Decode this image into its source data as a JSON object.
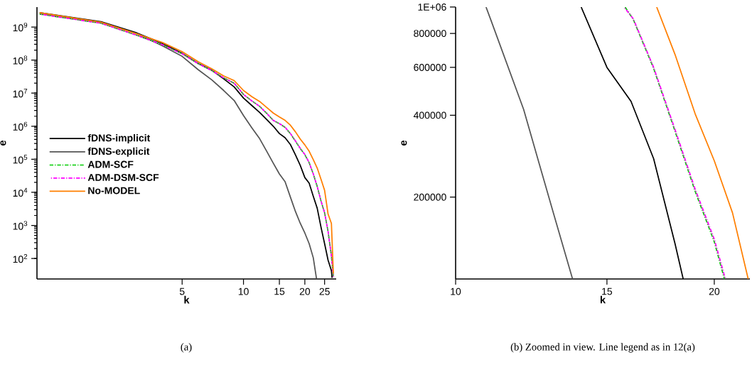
{
  "chart_data": [
    {
      "type": "line",
      "xlabel": "k",
      "ylabel": "e",
      "log": "xy",
      "xlim": [
        0.97,
        28.5
      ],
      "ylim": [
        24,
        4000000000
      ],
      "xticks": [
        5,
        10,
        15,
        20,
        25
      ],
      "yticks": [
        {
          "value": 100,
          "label": "10$^{2}$"
        },
        {
          "value": 1000,
          "label": "10$^{3}$"
        },
        {
          "value": 10000,
          "label": "10$^{4}$"
        },
        {
          "value": 100000,
          "label": "10$^{5}$"
        },
        {
          "value": 1000000,
          "label": "10$^{6}$"
        },
        {
          "value": 10000000,
          "label": "10$^{7}$"
        },
        {
          "value": 100000000,
          "label": "10$^{8}$"
        },
        {
          "value": 1000000000,
          "label": "10$^{9}$"
        }
      ],
      "legend": "left",
      "series": [
        {
          "name": "fDNS-implicit",
          "color": "#000000",
          "line_style": "solid",
          "x": [
            1,
            2,
            3,
            4,
            5,
            6,
            7,
            8,
            9,
            10,
            11,
            12,
            13,
            14,
            15,
            16,
            17,
            18,
            19,
            20,
            21,
            22,
            23,
            24,
            25,
            26,
            27,
            27.2
          ],
          "values": [
            2700000000,
            1450000000,
            660000000,
            320000000,
            160000000,
            79000000,
            49000000,
            27000000,
            15500000,
            7100000,
            4200000,
            2600000,
            1600000,
            1000000,
            600000,
            450000,
            277000,
            135000,
            65000,
            28000,
            19000,
            7600,
            3300,
            890,
            280,
            89,
            43,
            26
          ]
        },
        {
          "name": "fDNS-explicit",
          "color": "#555555",
          "line_style": "solid",
          "x": [
            1,
            2,
            3,
            4,
            5,
            6,
            7,
            8,
            9,
            10,
            11,
            12,
            13,
            14,
            15,
            16,
            17,
            18,
            19,
            20,
            21,
            22,
            22.8
          ],
          "values": [
            2600000000,
            1350000000,
            630000000,
            270000000,
            130000000,
            51000000,
            25000000,
            12000000,
            6000000,
            2100000,
            890000,
            420000,
            174000,
            76000,
            36000,
            21000,
            7100,
            2600,
            1150,
            590,
            280,
            105,
            25
          ]
        },
        {
          "name": "ADM-SCF",
          "color": "#00cc00",
          "line_style": "dashdot",
          "x": [
            1,
            2,
            3,
            4,
            5,
            6,
            7,
            8,
            9,
            10,
            11,
            12,
            13,
            14,
            15,
            16,
            17,
            18,
            19,
            20,
            21,
            22,
            23,
            24,
            25,
            26,
            27,
            27.6
          ],
          "values": [
            2450000000,
            1300000000,
            560000000,
            290000000,
            155000000,
            78000000,
            48000000,
            29000000,
            20000000,
            9100000,
            5800000,
            4000000,
            2450000,
            1500000,
            1200000,
            920000,
            595000,
            350000,
            210000,
            137000,
            79000,
            36000,
            15000,
            5500,
            2400,
            650,
            120,
            28
          ]
        },
        {
          "name": "ADM-DSM-SCF",
          "color": "#ff00ff",
          "line_style": "dashdot",
          "x": [
            1,
            2,
            3,
            4,
            5,
            6,
            7,
            8,
            9,
            10,
            11,
            12,
            13,
            14,
            15,
            16,
            17,
            18,
            19,
            20,
            21,
            22,
            23,
            24,
            25,
            26,
            27,
            27.6
          ],
          "values": [
            2450000000,
            1300000000,
            560000000,
            290000000,
            155000000,
            78000000,
            48000000,
            29000000,
            20000000,
            9100000,
            5800000,
            4000000,
            2450000,
            1500000,
            1200000,
            930000,
            600000,
            355000,
            214000,
            140000,
            79000,
            36000,
            15000,
            5500,
            2400,
            650,
            120,
            28
          ]
        },
        {
          "name": "No-MODEL",
          "color": "#ff7f00",
          "line_style": "solid",
          "x": [
            1,
            2,
            3,
            4,
            5,
            6,
            7,
            8,
            9,
            10,
            11,
            12,
            13,
            14,
            15,
            16,
            17,
            18,
            19,
            20,
            21,
            22,
            23,
            24,
            25,
            26,
            27,
            27.6
          ],
          "values": [
            2700000000,
            1400000000,
            620000000,
            340000000,
            180000000,
            89000000,
            54000000,
            33000000,
            24000000,
            12000000,
            7800000,
            5600000,
            3700000,
            2500000,
            1900000,
            1500000,
            1070000,
            670000,
            405000,
            272000,
            175000,
            98000,
            54000,
            25000,
            11500,
            2200,
            1150,
            35
          ]
        }
      ],
      "annotations": [
        "(a)"
      ]
    },
    {
      "type": "line",
      "xlabel": "k",
      "ylabel": "e",
      "log": "xy",
      "xlim": [
        10,
        22
      ],
      "ylim": [
        100000,
        1000000
      ],
      "xticks": [
        10,
        15,
        20
      ],
      "yticks": [
        200000,
        400000,
        600000,
        800000,
        {
          "value": 1000000,
          "label": "1E+06"
        }
      ],
      "series": [
        {
          "color": "#555555",
          "line_style": "solid",
          "x": [
            10.85,
            11,
            12,
            13,
            13.68
          ],
          "values": [
            1000000,
            890000,
            420000,
            174000,
            100000
          ]
        },
        {
          "color": "#000000",
          "line_style": "solid",
          "x": [
            14,
            15,
            16,
            17,
            18,
            18.4
          ],
          "values": [
            1000000,
            600000,
            450000,
            277000,
            135000,
            100000
          ]
        },
        {
          "color": "#00cc00",
          "line_style": "dashdot",
          "x": [
            15.75,
            16.1,
            17,
            18,
            19,
            20,
            20.55
          ],
          "values": [
            1000000,
            900000,
            595000,
            350000,
            210000,
            137000,
            100000
          ]
        },
        {
          "color": "#ff00ff",
          "line_style": "dashdot",
          "x": [
            15.7,
            16.1,
            17,
            18,
            19,
            20,
            20.6
          ],
          "values": [
            1000000,
            905000,
            600000,
            355000,
            214000,
            140000,
            100000
          ]
        },
        {
          "color": "#ff7f00",
          "line_style": "solid",
          "x": [
            17.14,
            18,
            19,
            20,
            21,
            21.9
          ],
          "values": [
            1000000,
            670000,
            405000,
            272000,
            175000,
            100000
          ]
        }
      ],
      "annotations": [
        "(b) Zoomed in view. Line legend as in 12(a)"
      ]
    }
  ]
}
